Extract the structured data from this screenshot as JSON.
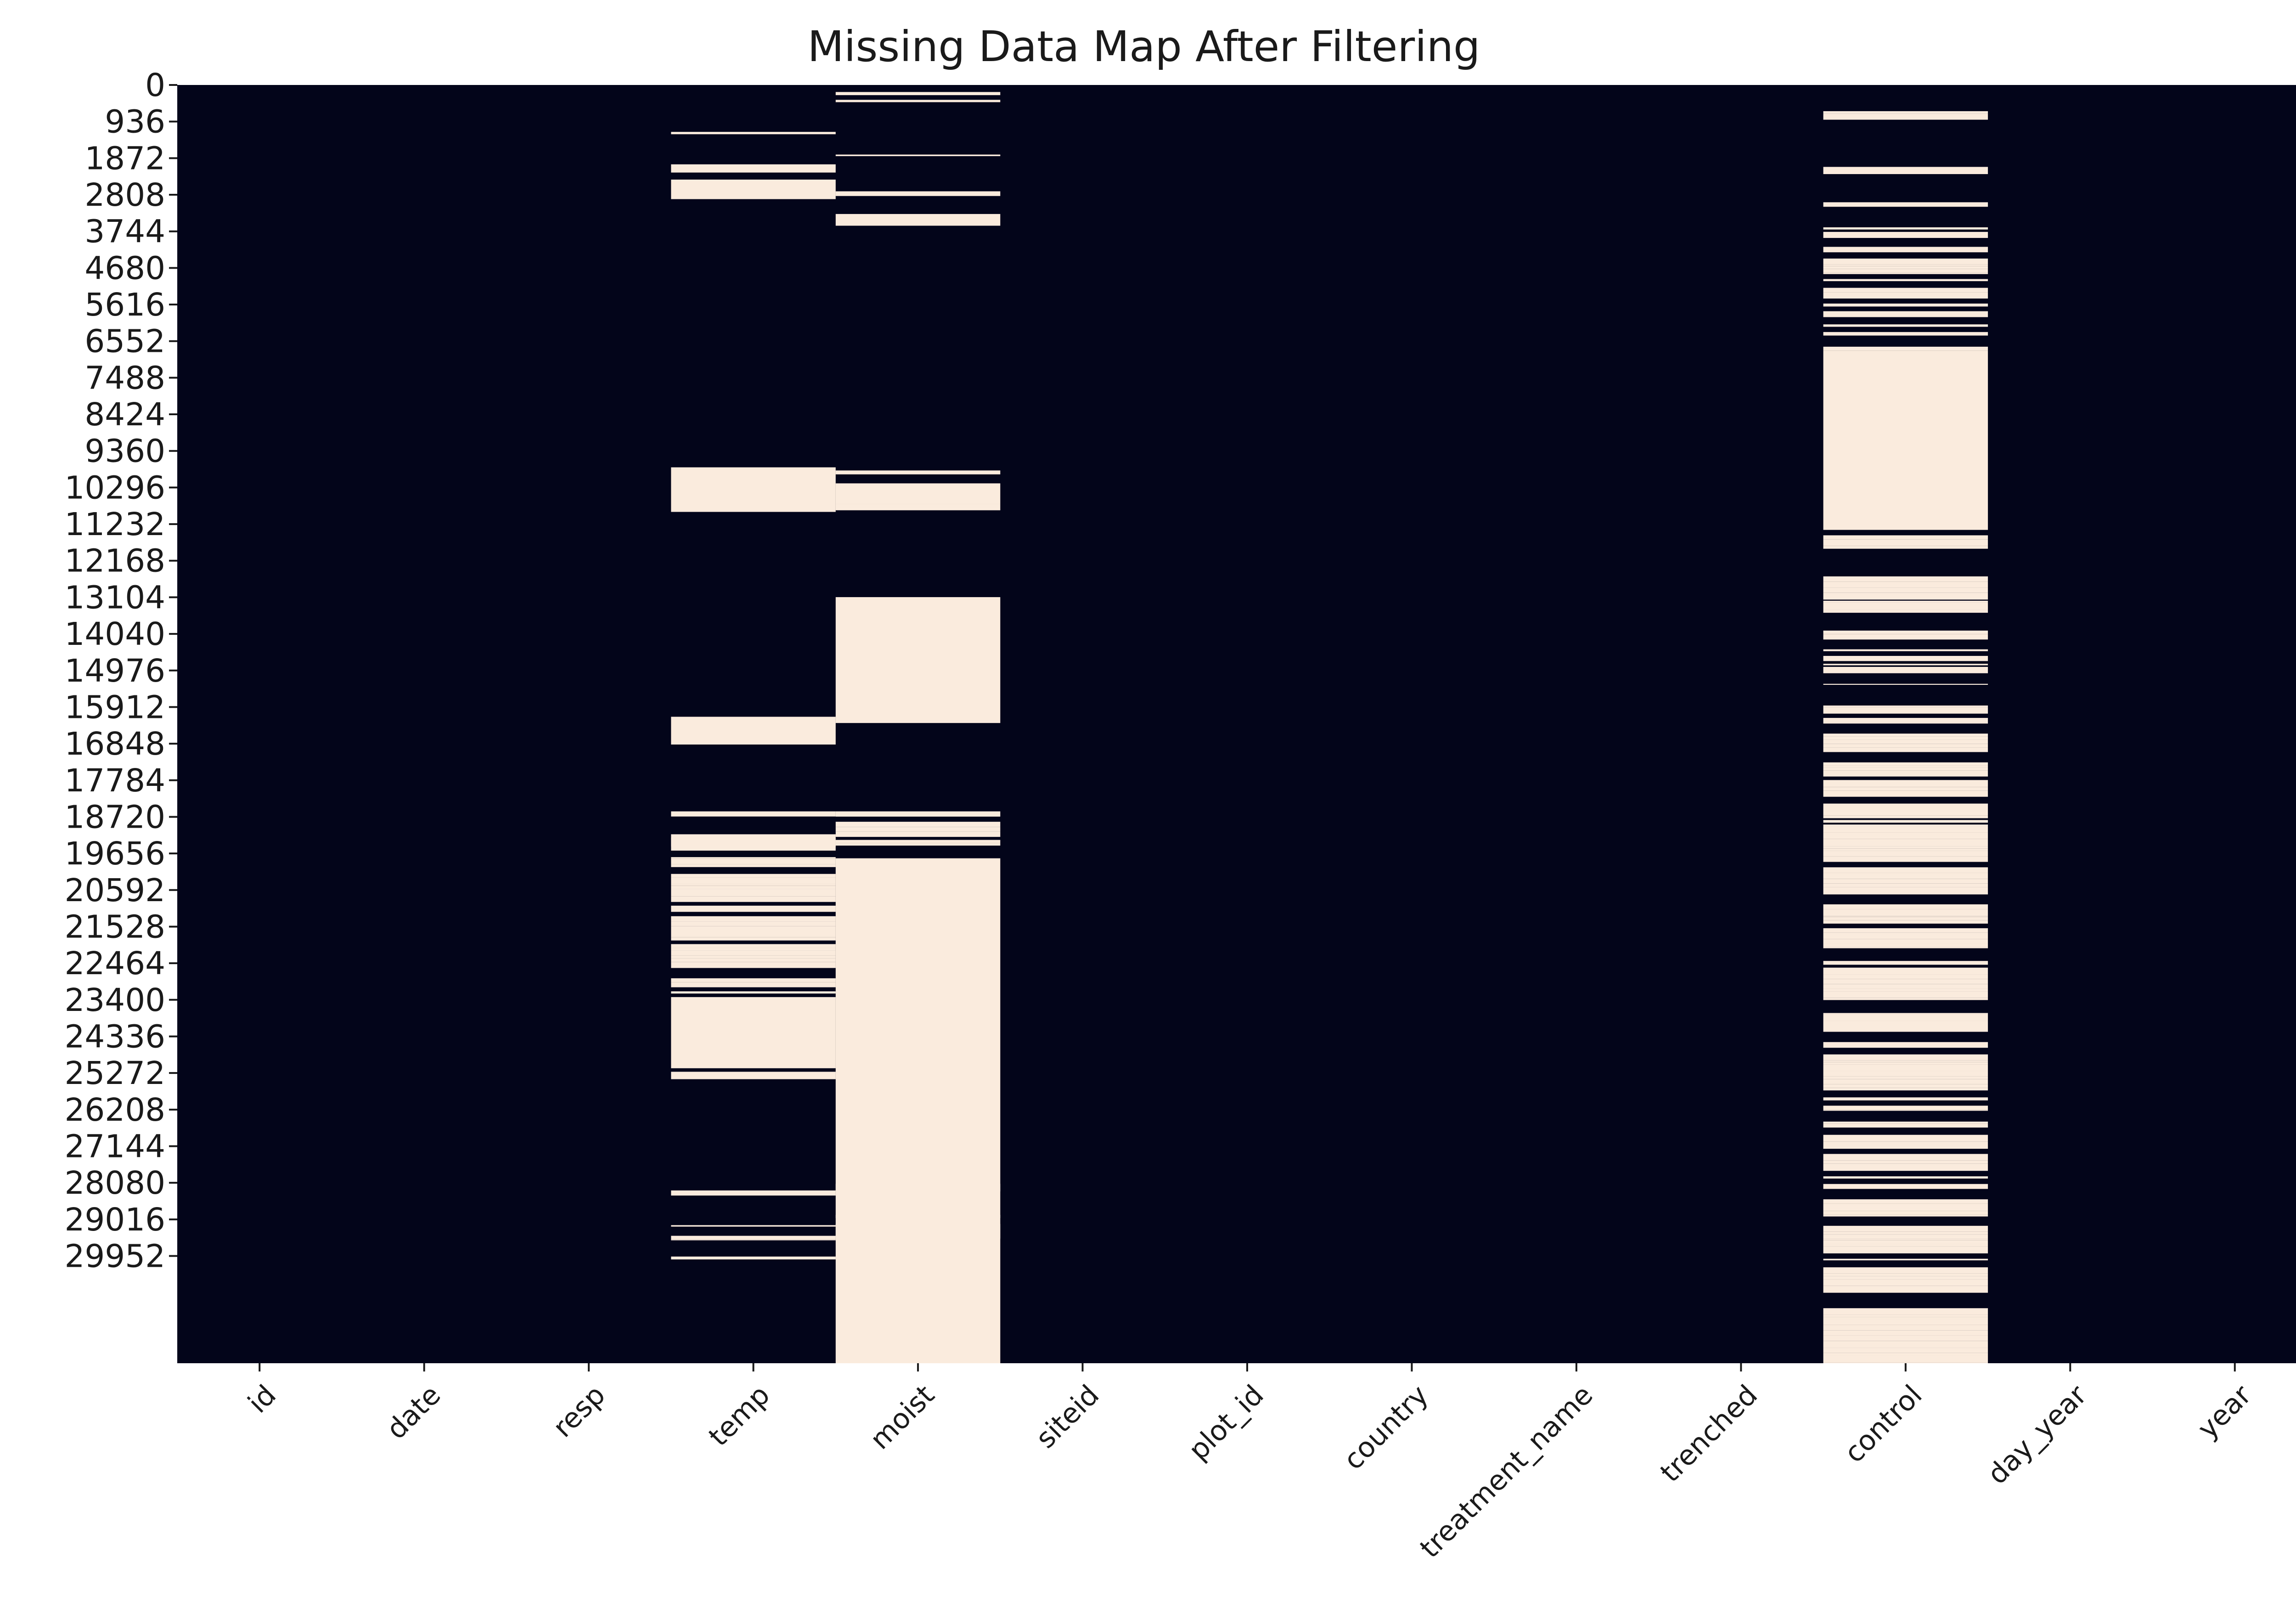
{
  "chart_data": {
    "type": "heatmap",
    "title": "Missing Data Map After Filtering",
    "xlabel": "",
    "ylabel": "",
    "grid": false,
    "legend": "none",
    "colors": {
      "present": "#03051a",
      "missing": "#faebdd"
    },
    "row_count": 32695,
    "y_tick_labels": [
      "0",
      "936",
      "1872",
      "2808",
      "3744",
      "4680",
      "5616",
      "6552",
      "7488",
      "8424",
      "9360",
      "10296",
      "11232",
      "12168",
      "13104",
      "14040",
      "14976",
      "15912",
      "16848",
      "17784",
      "18720",
      "19656",
      "20592",
      "21528",
      "22464",
      "23400",
      "24336",
      "25272",
      "26208",
      "27144",
      "28080",
      "29016",
      "29952"
    ],
    "columns": [
      {
        "name": "id",
        "missing_ranges": []
      },
      {
        "name": "date",
        "missing_ranges": []
      },
      {
        "name": "resp",
        "missing_ranges": []
      },
      {
        "name": "temp",
        "missing_ranges": [
          [
            1200,
            1260
          ],
          [
            2030,
            2240
          ],
          [
            2420,
            2920
          ],
          [
            9780,
            10920
          ],
          [
            16160,
            16870
          ],
          [
            19250,
            19480
          ],
          [
            23330,
            25150
          ],
          [
            25240,
            25430
          ]
        ]
      },
      {
        "name": "moist",
        "missing_ranges": [
          [
            180,
            260
          ],
          [
            380,
            440
          ],
          [
            1780,
            1820
          ],
          [
            2720,
            2840
          ],
          [
            3300,
            3600
          ],
          [
            9860,
            9960
          ],
          [
            10190,
            10720
          ],
          [
            13100,
            16320
          ],
          [
            19780,
            32695
          ]
        ]
      },
      {
        "name": "siteid",
        "missing_ranges": []
      },
      {
        "name": "plot_id",
        "missing_ranges": []
      },
      {
        "name": "country",
        "missing_ranges": []
      },
      {
        "name": "treatment_name",
        "missing_ranges": []
      },
      {
        "name": "trenched",
        "missing_ranges": []
      },
      {
        "name": "control",
        "missing_ranges": [
          [
            6800,
            11380
          ]
        ]
      },
      {
        "name": "day_year",
        "missing_ranges": []
      },
      {
        "name": "year",
        "missing_ranges": []
      }
    ],
    "striped_ranges": [
      {
        "column": "temp",
        "from": 18580,
        "to": 19750,
        "density": 0.5
      },
      {
        "column": "temp",
        "from": 19750,
        "to": 23330,
        "density": 0.55
      },
      {
        "column": "temp",
        "from": 28250,
        "to": 30150,
        "density": 0.45
      },
      {
        "column": "moist",
        "from": 18580,
        "to": 19780,
        "density": 0.5
      },
      {
        "column": "moist",
        "from": 10720,
        "to": 10880,
        "density": 0.5
      },
      {
        "column": "moist",
        "from": 28060,
        "to": 28300,
        "density": 0.5
      },
      {
        "column": "moist",
        "from": 28900,
        "to": 29600,
        "density": 0.5
      },
      {
        "column": "control",
        "from": 0,
        "to": 3000,
        "density": 0.2
      },
      {
        "column": "control",
        "from": 3000,
        "to": 6800,
        "density": 0.55
      },
      {
        "column": "control",
        "from": 11380,
        "to": 13500,
        "density": 0.5
      },
      {
        "column": "control",
        "from": 13500,
        "to": 16300,
        "density": 0.25
      },
      {
        "column": "control",
        "from": 16300,
        "to": 32695,
        "density": 0.72
      }
    ]
  }
}
